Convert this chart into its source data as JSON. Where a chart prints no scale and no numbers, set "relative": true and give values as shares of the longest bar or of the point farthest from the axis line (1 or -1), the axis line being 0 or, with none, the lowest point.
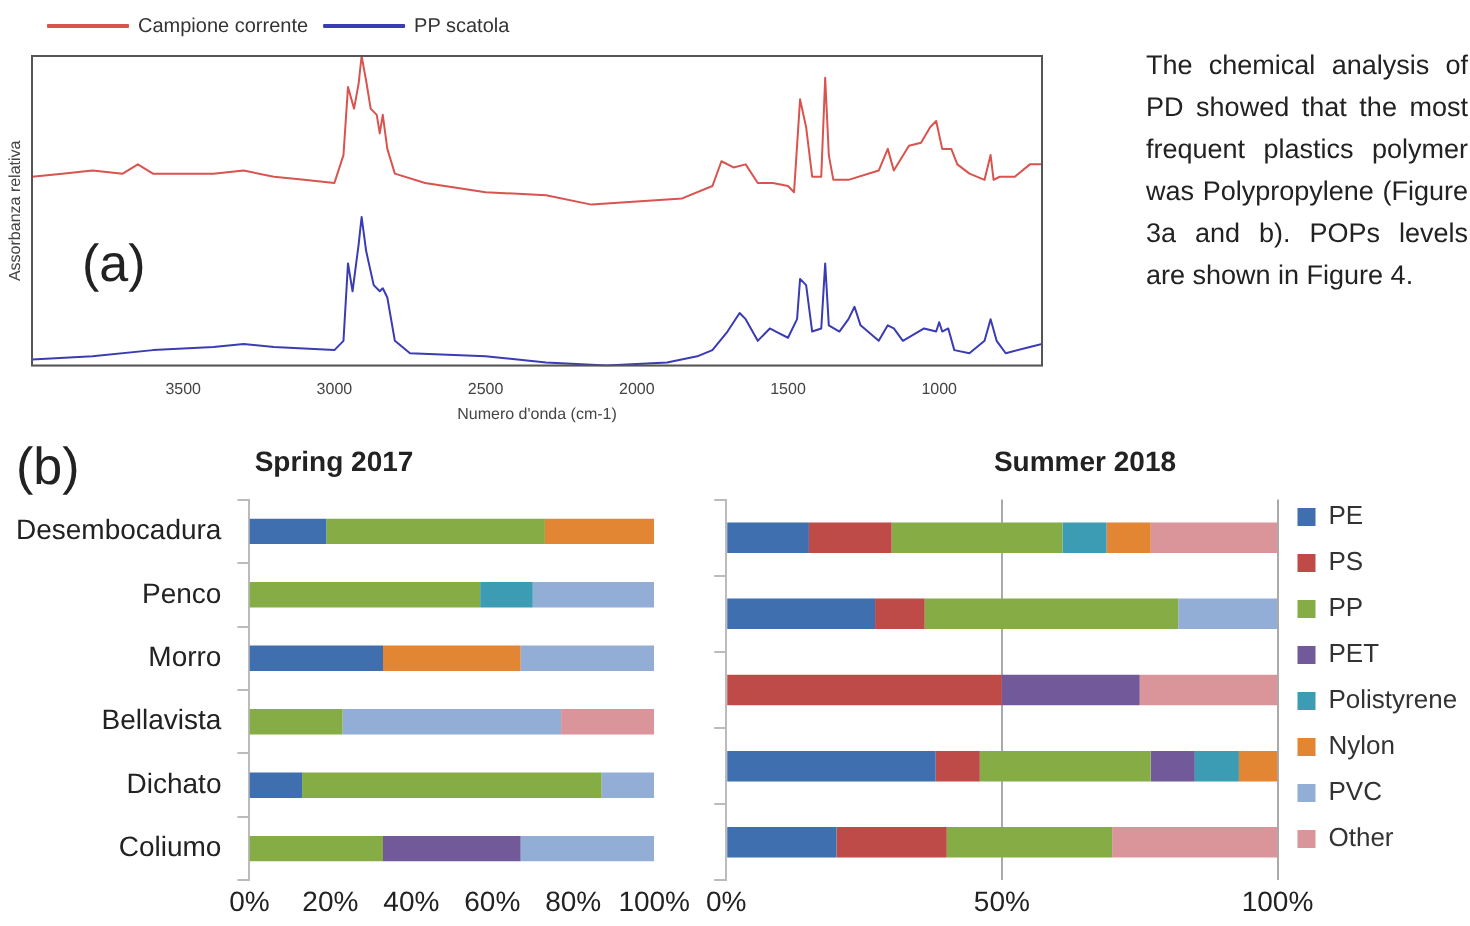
{
  "chart_data": [
    {
      "type": "line",
      "relative": true,
      "xlabel": "Numero d'onda (cm-1)",
      "ylabel": "Assorbanza relativa",
      "legend": "top left",
      "marker": "none",
      "xlim": [
        4000,
        660
      ],
      "xticks": [
        3500,
        3000,
        2500,
        2000,
        1500,
        1000
      ],
      "annotations": [
        "(a)"
      ],
      "series": [
        {
          "name": "Campione corrente",
          "color": "#d9534f",
          "x": [
            4000,
            3900,
            3800,
            3700,
            3650,
            3600,
            3500,
            3400,
            3300,
            3200,
            3100,
            3000,
            2970,
            2955,
            2935,
            2920,
            2910,
            2895,
            2880,
            2860,
            2850,
            2840,
            2825,
            2800,
            2700,
            2500,
            2300,
            2150,
            2000,
            1850,
            1750,
            1720,
            1680,
            1640,
            1600,
            1550,
            1500,
            1480,
            1460,
            1440,
            1420,
            1390,
            1377,
            1365,
            1350,
            1300,
            1200,
            1170,
            1150,
            1100,
            1060,
            1030,
            1010,
            990,
            960,
            940,
            900,
            850,
            830,
            820,
            800,
            750,
            700,
            660
          ],
          "values": [
            0.61,
            0.62,
            0.63,
            0.62,
            0.65,
            0.62,
            0.62,
            0.62,
            0.63,
            0.61,
            0.6,
            0.59,
            0.68,
            0.9,
            0.83,
            0.91,
            1.0,
            0.92,
            0.83,
            0.81,
            0.75,
            0.81,
            0.7,
            0.62,
            0.59,
            0.56,
            0.55,
            0.52,
            0.53,
            0.54,
            0.58,
            0.66,
            0.64,
            0.65,
            0.59,
            0.59,
            0.58,
            0.56,
            0.86,
            0.77,
            0.61,
            0.61,
            0.93,
            0.68,
            0.6,
            0.6,
            0.63,
            0.7,
            0.63,
            0.71,
            0.72,
            0.77,
            0.79,
            0.7,
            0.7,
            0.65,
            0.62,
            0.6,
            0.68,
            0.6,
            0.61,
            0.61,
            0.65,
            0.65
          ]
        },
        {
          "name": "PP scatola",
          "color": "#3b3bb3",
          "x": [
            4000,
            3800,
            3600,
            3400,
            3300,
            3200,
            3000,
            2970,
            2955,
            2940,
            2920,
            2910,
            2895,
            2870,
            2850,
            2840,
            2825,
            2800,
            2750,
            2500,
            2300,
            2100,
            1900,
            1800,
            1750,
            1700,
            1660,
            1640,
            1600,
            1560,
            1540,
            1500,
            1470,
            1460,
            1440,
            1420,
            1390,
            1377,
            1365,
            1330,
            1300,
            1280,
            1260,
            1200,
            1170,
            1150,
            1120,
            1050,
            1010,
            1000,
            990,
            970,
            950,
            900,
            850,
            830,
            810,
            780,
            700,
            660
          ],
          "values": [
            0.02,
            0.03,
            0.05,
            0.06,
            0.07,
            0.06,
            0.05,
            0.08,
            0.33,
            0.24,
            0.39,
            0.48,
            0.37,
            0.26,
            0.24,
            0.25,
            0.22,
            0.08,
            0.04,
            0.03,
            0.01,
            0,
            0.01,
            0.03,
            0.05,
            0.11,
            0.17,
            0.15,
            0.08,
            0.12,
            0.11,
            0.09,
            0.15,
            0.28,
            0.26,
            0.11,
            0.12,
            0.33,
            0.13,
            0.11,
            0.15,
            0.19,
            0.13,
            0.08,
            0.13,
            0.12,
            0.08,
            0.12,
            0.11,
            0.14,
            0.11,
            0.12,
            0.05,
            0.04,
            0.08,
            0.15,
            0.08,
            0.04,
            0.06,
            0.07
          ]
        }
      ]
    },
    {
      "type": "other",
      "annotations": [
        "The chemical analysis of PD showed that the most frequent plastics polymer was Polypropylene (Figure 3a and b). POPs levels are shown in Figure 4."
      ]
    },
    {
      "type": "bar",
      "orientation": "horizontal",
      "stacked": true,
      "title": "Spring 2017",
      "annotations": [
        "(b)"
      ],
      "categories": [
        "Desembocadura",
        "Penco",
        "Morro",
        "Bellavista",
        "Dichato",
        "Coliumo"
      ],
      "xlim": [
        0,
        100
      ],
      "xticks": [
        {
          "value": 0,
          "label": "0%"
        },
        {
          "value": 20,
          "label": "20%"
        },
        {
          "value": 40,
          "label": "40%"
        },
        {
          "value": 60,
          "label": "60%"
        },
        {
          "value": 80,
          "label": "80%"
        },
        {
          "value": 100,
          "label": "100%"
        }
      ],
      "series": [
        {
          "color": "#3f6fae",
          "values": [
            19,
            null,
            33,
            null,
            13,
            null
          ]
        },
        {
          "color": "#be4b48",
          "values": [
            null,
            null,
            null,
            null,
            null,
            null
          ]
        },
        {
          "color": "#86ac46",
          "values": [
            54,
            57,
            null,
            23,
            74,
            33
          ]
        },
        {
          "color": "#71599a",
          "values": [
            null,
            null,
            null,
            null,
            null,
            34
          ]
        },
        {
          "color": "#3c9cb4",
          "values": [
            null,
            13,
            null,
            null,
            null,
            null
          ]
        },
        {
          "color": "#e38634",
          "values": [
            27,
            null,
            34,
            null,
            null,
            null
          ]
        },
        {
          "color": "#93aed6",
          "values": [
            null,
            30,
            33,
            54,
            13,
            33
          ]
        },
        {
          "color": "#d9959a",
          "values": [
            null,
            null,
            null,
            23,
            null,
            null
          ]
        }
      ]
    },
    {
      "type": "bar",
      "orientation": "horizontal",
      "stacked": true,
      "title": "Summer 2018",
      "legend": "right",
      "grid": "x",
      "tick_labels": "x",
      "categories": [
        null,
        null,
        null,
        null,
        null
      ],
      "xlim": [
        0,
        100
      ],
      "xticks": [
        {
          "value": 0,
          "label": "0%"
        },
        {
          "value": 50,
          "label": "50%"
        },
        {
          "value": 100,
          "label": "100%"
        }
      ],
      "series": [
        {
          "name": "PE",
          "color": "#3f6fae",
          "values": [
            15,
            27,
            null,
            38,
            20
          ]
        },
        {
          "name": "PS",
          "color": "#be4b48",
          "values": [
            15,
            9,
            50,
            8,
            20
          ]
        },
        {
          "name": "PP",
          "color": "#86ac46",
          "values": [
            31,
            46,
            null,
            31,
            30
          ]
        },
        {
          "name": "PET",
          "color": "#71599a",
          "values": [
            null,
            null,
            25,
            8,
            null
          ]
        },
        {
          "name": "Polistyrene",
          "color": "#3c9cb4",
          "values": [
            8,
            null,
            null,
            8,
            null
          ]
        },
        {
          "name": "Nylon",
          "color": "#e38634",
          "values": [
            8,
            null,
            null,
            7,
            null
          ]
        },
        {
          "name": "PVC",
          "color": "#93aed6",
          "values": [
            null,
            18,
            null,
            null,
            null
          ]
        },
        {
          "name": "Other",
          "color": "#d9959a",
          "values": [
            23,
            null,
            25,
            null,
            30
          ]
        }
      ]
    }
  ]
}
